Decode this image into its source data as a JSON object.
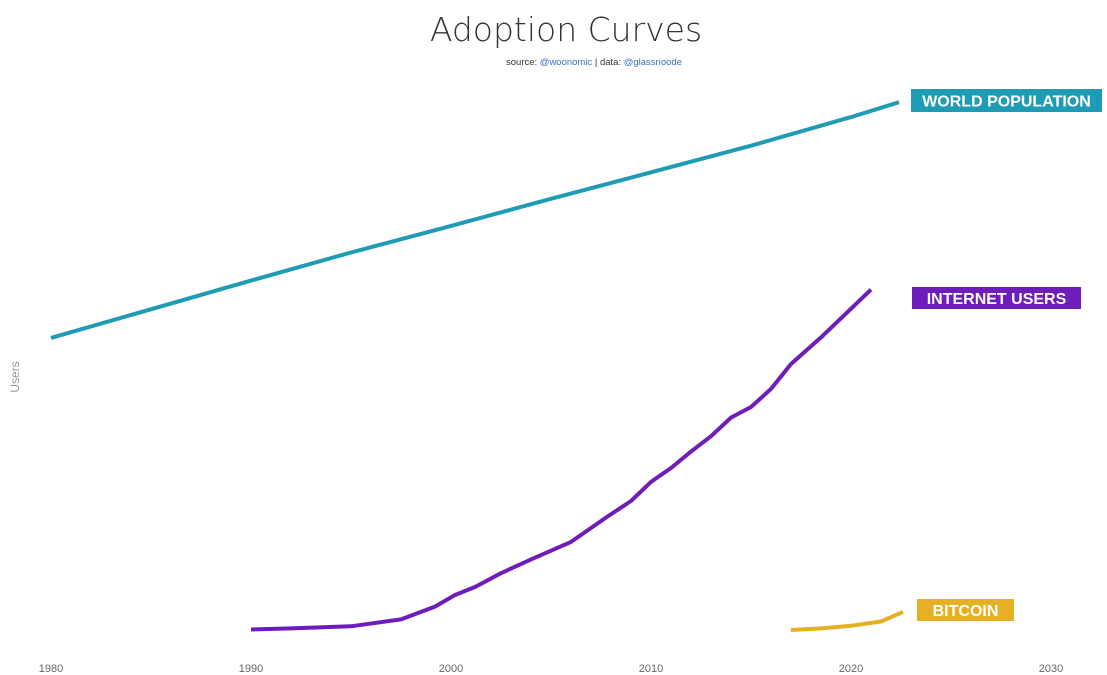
{
  "chart_data": {
    "type": "line",
    "title": "Adoption Curves",
    "subtitle": {
      "prefix": "source: ",
      "source_handle": "@woonomic",
      "separator": " | data: ",
      "data_handle": "@glassnoode"
    },
    "xlabel": "",
    "ylabel": "Users",
    "xlim": [
      1980,
      2030
    ],
    "ylim": [
      0,
      100
    ],
    "x_ticks": [
      1980,
      1990,
      2000,
      2010,
      2020,
      2030
    ],
    "grid": false,
    "legend": "inline labels at series ends",
    "series": [
      {
        "name": "WORLD POPULATION",
        "color": "#1f9bb5",
        "points": [
          [
            1980,
            55.0
          ],
          [
            1990,
            65.8
          ],
          [
            1995,
            71.1
          ],
          [
            2000,
            76.1
          ],
          [
            2005,
            81.2
          ],
          [
            2010,
            86.2
          ],
          [
            2015,
            91.2
          ],
          [
            2020,
            96.6
          ],
          [
            2022.4,
            99.4
          ]
        ]
      },
      {
        "name": "INTERNET USERS",
        "color": "#6e1dbb",
        "points": [
          [
            1990,
            0.1
          ],
          [
            1992,
            0.3
          ],
          [
            1995,
            0.7
          ],
          [
            1997.5,
            2.0
          ],
          [
            1999.2,
            4.4
          ],
          [
            2000.2,
            6.6
          ],
          [
            2001.2,
            8.1
          ],
          [
            2002.5,
            10.7
          ],
          [
            2004,
            13.3
          ],
          [
            2006,
            16.6
          ],
          [
            2007.8,
            21.3
          ],
          [
            2009,
            24.3
          ],
          [
            2010,
            27.9
          ],
          [
            2011,
            30.5
          ],
          [
            2012,
            33.6
          ],
          [
            2013,
            36.5
          ],
          [
            2014,
            40.0
          ],
          [
            2015,
            42.0
          ],
          [
            2016,
            45.4
          ],
          [
            2017,
            50.1
          ],
          [
            2018.5,
            55.1
          ],
          [
            2021,
            64.1
          ]
        ]
      },
      {
        "name": "BITCOIN",
        "color": "#e5b023",
        "points": [
          [
            2017,
            0.0
          ],
          [
            2018.5,
            0.3
          ],
          [
            2020,
            0.8
          ],
          [
            2021.5,
            1.6
          ],
          [
            2022.6,
            3.4
          ]
        ]
      }
    ]
  }
}
